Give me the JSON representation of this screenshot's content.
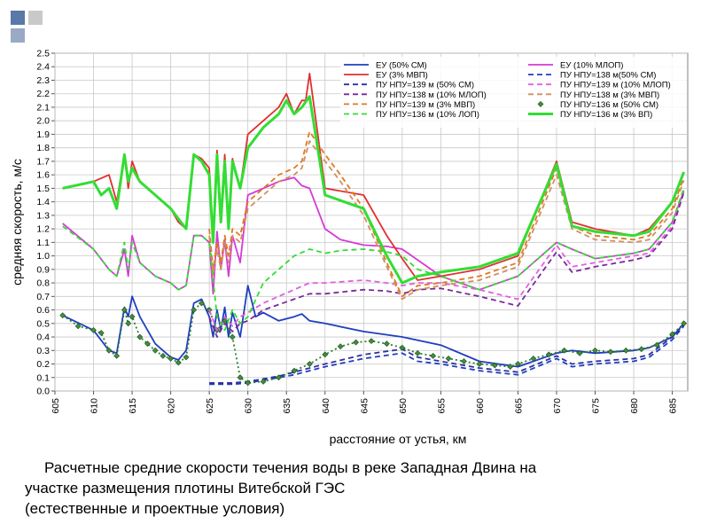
{
  "decor": {
    "square_colors": [
      "#5a78a8",
      "#c9c9c9",
      "#9aa9c4"
    ]
  },
  "caption": {
    "line1": "Расчетные  средние скорости течения воды в реке  Западная Двина  на",
    "line2": "участке размещения плотины Витебской ГЭС",
    "line3": "(естественные и проектные условия)"
  },
  "chart_data": {
    "type": "line",
    "title": "",
    "xlabel": "расстояние от устья, км",
    "ylabel": "средняя скорость, м/с",
    "xlim": [
      605,
      687
    ],
    "ylim": [
      0,
      2.5
    ],
    "xticks": [
      "605",
      "610",
      "615",
      "620",
      "625",
      "630",
      "635",
      "640",
      "645",
      "650",
      "655",
      "660",
      "665",
      "670",
      "675",
      "680",
      "685"
    ],
    "yticks": [
      "0.0",
      "0.1",
      "0.2",
      "0.3",
      "0.4",
      "0.5",
      "0.6",
      "0.7",
      "0.8",
      "0.9",
      "1.0",
      "1.1",
      "1.2",
      "1.3",
      "1.4",
      "1.5",
      "1.6",
      "1.7",
      "1.8",
      "1.9",
      "2.0",
      "2.1",
      "2.2",
      "2.3",
      "2.4",
      "2.5"
    ],
    "grid": true,
    "legend_position": "top-right",
    "series": [
      {
        "name": "ЕУ (50% СМ)",
        "color": "#1f3fbf",
        "dash": "solid",
        "marker": "none",
        "x": [
          606,
          610,
          612,
          613,
          614,
          614.5,
          615,
          616,
          618,
          620,
          621,
          622,
          623,
          624,
          625,
          625.5,
          626,
          626.5,
          627,
          627.5,
          628,
          629,
          630,
          631,
          632,
          634,
          636,
          637,
          638,
          640,
          645,
          650,
          655,
          660,
          665,
          670,
          672,
          675,
          680,
          682,
          685,
          686.5
        ],
        "y": [
          0.56,
          0.45,
          0.3,
          0.28,
          0.62,
          0.55,
          0.7,
          0.55,
          0.35,
          0.25,
          0.23,
          0.3,
          0.65,
          0.68,
          0.55,
          0.4,
          0.6,
          0.45,
          0.62,
          0.4,
          0.58,
          0.4,
          0.78,
          0.55,
          0.58,
          0.52,
          0.55,
          0.57,
          0.52,
          0.5,
          0.44,
          0.4,
          0.34,
          0.22,
          0.18,
          0.28,
          0.3,
          0.28,
          0.3,
          0.32,
          0.4,
          0.5
        ]
      },
      {
        "name": "ЕУ (10% МЛОП)",
        "color": "#d63ad6",
        "dash": "solid",
        "marker": "none",
        "x": [
          606,
          610,
          612,
          613,
          614,
          614.5,
          615,
          616,
          618,
          620,
          621,
          622,
          623,
          624,
          625,
          625.5,
          626,
          626.5,
          627,
          627.5,
          628,
          629,
          630,
          632,
          634,
          636,
          637,
          638,
          640,
          642,
          645,
          648,
          650,
          655,
          660,
          665,
          670,
          672,
          675,
          680,
          682,
          685,
          686.5
        ],
        "y": [
          1.24,
          1.05,
          0.9,
          0.85,
          1.05,
          0.85,
          1.15,
          0.95,
          0.85,
          0.8,
          0.75,
          0.78,
          1.15,
          1.15,
          1.1,
          0.72,
          1.18,
          0.9,
          1.12,
          0.85,
          1.15,
          0.95,
          1.45,
          1.5,
          1.55,
          1.58,
          1.52,
          1.5,
          1.2,
          1.12,
          1.08,
          1.07,
          1.05,
          0.85,
          0.75,
          0.85,
          1.1,
          1.05,
          0.98,
          1.02,
          1.05,
          1.25,
          1.48
        ]
      },
      {
        "name": "ЕУ (3% МВП)",
        "color": "#e03030",
        "dash": "solid",
        "marker": "none",
        "x": [
          606,
          610,
          612,
          613,
          614,
          614.5,
          615,
          616,
          618,
          620,
          621,
          622,
          623,
          624,
          625,
          625.5,
          626,
          626.5,
          627,
          627.5,
          628,
          629,
          630,
          632,
          634,
          635,
          636,
          637,
          637.5,
          638,
          640,
          645,
          648,
          650,
          652,
          655,
          660,
          665,
          670,
          672,
          675,
          680,
          682,
          685,
          686.5
        ],
        "y": [
          1.5,
          1.55,
          1.6,
          1.4,
          1.75,
          1.5,
          1.7,
          1.55,
          1.45,
          1.35,
          1.25,
          1.2,
          1.75,
          1.72,
          1.65,
          1.1,
          1.78,
          1.3,
          1.75,
          1.2,
          1.72,
          1.5,
          1.9,
          2.0,
          2.1,
          2.2,
          2.05,
          2.15,
          2.15,
          2.35,
          1.5,
          1.45,
          1.15,
          0.98,
          0.82,
          0.85,
          0.9,
          1.0,
          1.7,
          1.25,
          1.2,
          1.15,
          1.2,
          1.4,
          1.62
        ]
      },
      {
        "name": "ПУ НПУ=138 м(50% СМ)",
        "color": "#1f3fbf",
        "dash": "dashed",
        "marker": "none",
        "x": [
          625,
          628,
          630,
          632,
          634,
          636,
          638,
          640,
          645,
          650,
          652,
          655,
          660,
          665,
          670,
          672,
          675,
          680,
          682,
          685,
          686.5
        ],
        "y": [
          0.05,
          0.05,
          0.06,
          0.08,
          0.1,
          0.12,
          0.15,
          0.18,
          0.24,
          0.28,
          0.22,
          0.2,
          0.15,
          0.12,
          0.24,
          0.18,
          0.2,
          0.22,
          0.25,
          0.38,
          0.48
        ]
      },
      {
        "name": "ПУ НПУ=139 м (50% СМ)",
        "color": "#3030a0",
        "dash": "dashed",
        "marker": "none",
        "x": [
          625,
          628,
          630,
          632,
          634,
          636,
          638,
          640,
          645,
          650,
          652,
          655,
          660,
          665,
          670,
          672,
          675,
          680,
          682,
          685,
          686.5
        ],
        "y": [
          0.06,
          0.06,
          0.07,
          0.09,
          0.11,
          0.14,
          0.17,
          0.2,
          0.27,
          0.31,
          0.25,
          0.22,
          0.17,
          0.14,
          0.26,
          0.2,
          0.22,
          0.24,
          0.27,
          0.4,
          0.49
        ]
      },
      {
        "name": "ПУ НПУ=136 м (50% СМ)",
        "color": "#2e7d2e",
        "dash": "dotted",
        "marker": "diamond",
        "x": [
          606,
          608,
          610,
          611,
          612,
          613,
          614,
          614.5,
          615,
          616,
          617,
          618,
          619,
          620,
          621,
          622,
          623,
          624,
          625,
          626,
          627,
          628,
          629,
          630,
          632,
          634,
          636,
          638,
          640,
          642,
          644,
          646,
          648,
          650,
          652,
          654,
          656,
          658,
          660,
          662,
          664,
          665,
          667,
          669,
          671,
          673,
          675,
          677,
          679,
          681,
          683,
          685,
          686.5
        ],
        "y": [
          0.56,
          0.48,
          0.45,
          0.43,
          0.3,
          0.26,
          0.6,
          0.5,
          0.55,
          0.4,
          0.35,
          0.3,
          0.26,
          0.24,
          0.21,
          0.25,
          0.6,
          0.65,
          0.6,
          0.45,
          0.52,
          0.4,
          0.1,
          0.06,
          0.07,
          0.1,
          0.15,
          0.2,
          0.27,
          0.33,
          0.36,
          0.37,
          0.35,
          0.32,
          0.28,
          0.26,
          0.24,
          0.22,
          0.2,
          0.19,
          0.18,
          0.2,
          0.24,
          0.27,
          0.3,
          0.28,
          0.3,
          0.29,
          0.3,
          0.31,
          0.34,
          0.42,
          0.5
        ]
      },
      {
        "name": "ПУ НПУ=139 м (10% МЛОП)",
        "color": "#e060e0",
        "dash": "dashed",
        "marker": "none",
        "x": [
          625,
          626,
          627,
          628,
          629,
          630,
          632,
          634,
          636,
          638,
          640,
          645,
          648,
          650,
          652,
          655,
          660,
          665,
          670,
          672,
          675,
          680,
          682,
          685,
          686.5
        ],
        "y": [
          0.6,
          0.45,
          0.55,
          0.48,
          0.55,
          0.58,
          0.65,
          0.7,
          0.75,
          0.8,
          0.8,
          0.82,
          0.8,
          0.78,
          0.8,
          0.8,
          0.75,
          0.68,
          1.08,
          0.92,
          0.95,
          1.0,
          1.02,
          1.22,
          1.48
        ]
      },
      {
        "name": "ПУ НПУ=138 м (10% МЛОП)",
        "color": "#7a2a9a",
        "dash": "dashed",
        "marker": "none",
        "x": [
          625,
          626,
          627,
          628,
          629,
          630,
          632,
          634,
          636,
          638,
          640,
          645,
          648,
          650,
          652,
          655,
          660,
          665,
          670,
          672,
          675,
          680,
          682,
          685,
          686.5
        ],
        "y": [
          0.55,
          0.4,
          0.5,
          0.44,
          0.5,
          0.52,
          0.6,
          0.64,
          0.68,
          0.72,
          0.72,
          0.75,
          0.74,
          0.72,
          0.75,
          0.76,
          0.7,
          0.63,
          1.03,
          0.88,
          0.92,
          0.97,
          1.0,
          1.2,
          1.47
        ]
      },
      {
        "name": "ПУ НПУ=139 м (3% МВП)",
        "color": "#e07820",
        "dash": "dashed",
        "marker": "none",
        "x": [
          625,
          625.5,
          626,
          626.5,
          627,
          627.5,
          628,
          629,
          630,
          632,
          634,
          636,
          637,
          638,
          640,
          642,
          645,
          648,
          650,
          652,
          655,
          660,
          665,
          670,
          672,
          675,
          680,
          682,
          685,
          686.5
        ],
        "y": [
          1.2,
          0.9,
          1.1,
          0.95,
          1.15,
          1.0,
          1.2,
          1.15,
          1.4,
          1.5,
          1.6,
          1.65,
          1.7,
          1.92,
          1.75,
          1.6,
          1.35,
          0.95,
          0.7,
          0.78,
          0.8,
          0.85,
          0.95,
          1.65,
          1.22,
          1.15,
          1.12,
          1.15,
          1.35,
          1.58
        ]
      },
      {
        "name": "ПУ НПУ=138 м (3% МВП)",
        "color": "#d09060",
        "dash": "dashed",
        "marker": "none",
        "x": [
          625,
          625.5,
          626,
          626.5,
          627,
          627.5,
          628,
          629,
          630,
          632,
          634,
          636,
          637,
          638,
          640,
          642,
          645,
          648,
          650,
          652,
          655,
          660,
          665,
          670,
          672,
          675,
          680,
          682,
          685,
          686.5
        ],
        "y": [
          1.15,
          0.85,
          1.05,
          0.9,
          1.1,
          0.95,
          1.15,
          1.1,
          1.35,
          1.45,
          1.55,
          1.6,
          1.65,
          1.85,
          1.7,
          1.55,
          1.3,
          0.92,
          0.68,
          0.75,
          0.78,
          0.82,
          0.92,
          1.6,
          1.2,
          1.12,
          1.1,
          1.12,
          1.32,
          1.56
        ]
      },
      {
        "name": "ПУ НПУ=136 м (10% ЛОП)",
        "color": "#33dd33",
        "dash": "dashed",
        "marker": "none",
        "x": [
          606,
          610,
          612,
          613,
          614,
          614.5,
          615,
          616,
          618,
          620,
          621,
          622,
          623,
          624,
          625,
          626,
          627,
          628,
          629,
          630,
          632,
          634,
          636,
          638,
          640,
          642,
          645,
          648,
          650,
          652,
          655,
          660,
          665,
          670,
          672,
          675,
          680,
          682,
          685,
          686.5
        ],
        "y": [
          1.22,
          1.05,
          0.9,
          0.85,
          1.1,
          0.9,
          1.1,
          0.95,
          0.85,
          0.8,
          0.75,
          0.78,
          1.15,
          1.15,
          1.1,
          0.55,
          0.45,
          0.6,
          0.5,
          0.55,
          0.8,
          0.9,
          1.0,
          1.05,
          1.02,
          1.04,
          1.05,
          1.03,
          1.0,
          0.9,
          0.85,
          0.75,
          0.85,
          1.1,
          1.05,
          0.98,
          1.02,
          1.05,
          1.25,
          1.5
        ]
      },
      {
        "name": "ПУ НПУ=136 м (3% ВП)",
        "color": "#33dd33",
        "dash": "solid",
        "marker": "none",
        "x": [
          606,
          610,
          611,
          612,
          613,
          614,
          614.5,
          615,
          616,
          618,
          620,
          622,
          623,
          624,
          625,
          625.5,
          626,
          626.5,
          627,
          627.5,
          628,
          629,
          630,
          632,
          634,
          635,
          636,
          637,
          638,
          640,
          645,
          648,
          650,
          652,
          655,
          660,
          665,
          670,
          672,
          675,
          680,
          682,
          685,
          686.5
        ],
        "y": [
          1.5,
          1.55,
          1.45,
          1.5,
          1.35,
          1.75,
          1.55,
          1.65,
          1.55,
          1.45,
          1.35,
          1.2,
          1.75,
          1.7,
          1.6,
          1.1,
          1.75,
          1.25,
          1.7,
          1.2,
          1.7,
          1.5,
          1.8,
          1.95,
          2.05,
          2.15,
          2.05,
          2.1,
          2.18,
          1.45,
          1.35,
          1.0,
          0.8,
          0.85,
          0.88,
          0.92,
          1.02,
          1.68,
          1.22,
          1.18,
          1.15,
          1.18,
          1.4,
          1.62
        ]
      }
    ]
  }
}
